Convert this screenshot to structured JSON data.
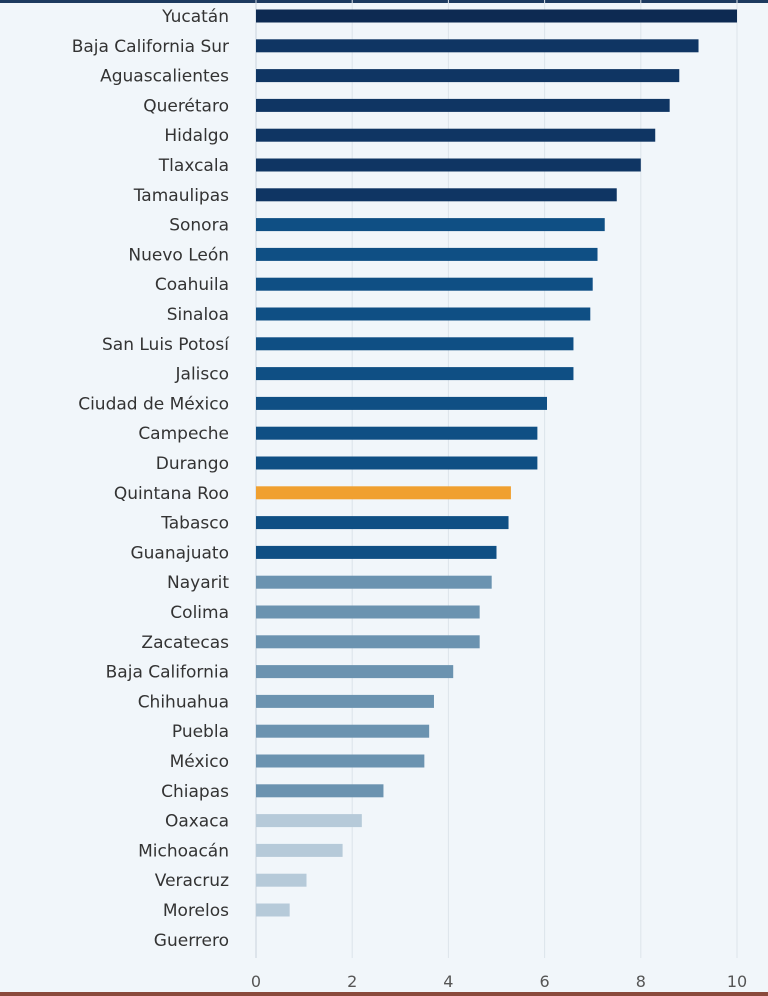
{
  "chart_data": {
    "type": "bar",
    "orientation": "horizontal",
    "categories": [
      "Yucatán",
      "Baja California Sur",
      "Aguascalientes",
      "Querétaro",
      "Hidalgo",
      "Tlaxcala",
      "Tamaulipas",
      "Sonora",
      "Nuevo León",
      "Coahuila",
      "Sinaloa",
      "San Luis Potosí",
      "Jalisco",
      "Ciudad de México",
      "Campeche",
      "Durango",
      "Quintana Roo",
      "Tabasco",
      "Guanajuato",
      "Nayarit",
      "Colima",
      "Zacatecas",
      "Baja California",
      "Chihuahua",
      "Puebla",
      "México",
      "Chiapas",
      "Oaxaca",
      "Michoacán",
      "Veracruz",
      "Morelos",
      "Guerrero"
    ],
    "values": [
      10.0,
      9.2,
      8.8,
      8.6,
      8.3,
      8.0,
      7.5,
      7.25,
      7.1,
      7.0,
      6.95,
      6.6,
      6.6,
      6.05,
      5.85,
      5.85,
      5.3,
      5.25,
      5.0,
      4.9,
      4.65,
      4.65,
      4.1,
      3.7,
      3.6,
      3.5,
      2.65,
      2.2,
      1.8,
      1.05,
      0.7,
      0
    ],
    "bar_colors": [
      "#0d2a52",
      "#0f3563",
      "#0f3563",
      "#0f3563",
      "#0f3563",
      "#0f3563",
      "#0f3563",
      "#0f4f84",
      "#0f4f84",
      "#0f4f84",
      "#0f4f84",
      "#0f4f84",
      "#0f4f84",
      "#0f4f84",
      "#0f4f84",
      "#0f4f84",
      "#f0a030",
      "#0f4f84",
      "#0f4f84",
      "#6b93b0",
      "#6b93b0",
      "#6b93b0",
      "#6b93b0",
      "#6b93b0",
      "#6b93b0",
      "#6b93b0",
      "#6b93b0",
      "#b6cad9",
      "#b6cad9",
      "#b6cad9",
      "#b6cad9",
      "#b6cad9"
    ],
    "xlim": [
      0,
      10
    ],
    "xticks": [
      0,
      2,
      4,
      6,
      8,
      10
    ],
    "xtick_labels": [
      "0",
      "2",
      "4",
      "6",
      "8",
      "10"
    ],
    "grid": true,
    "title": "",
    "xlabel": "",
    "ylabel": ""
  }
}
